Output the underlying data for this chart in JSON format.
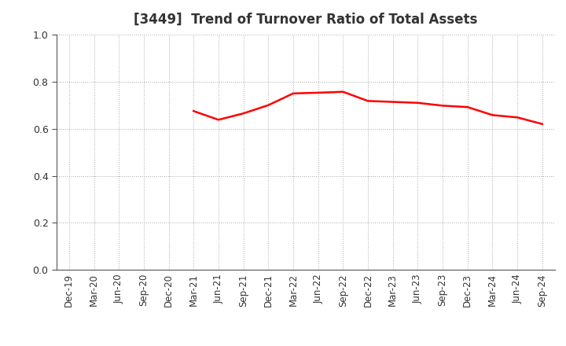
{
  "title": "[3449]  Trend of Turnover Ratio of Total Assets",
  "x_labels": [
    "Dec-19",
    "Mar-20",
    "Jun-20",
    "Sep-20",
    "Dec-20",
    "Mar-21",
    "Jun-21",
    "Sep-21",
    "Dec-21",
    "Mar-22",
    "Jun-22",
    "Sep-22",
    "Dec-22",
    "Mar-23",
    "Jun-23",
    "Sep-23",
    "Dec-23",
    "Mar-24",
    "Jun-24",
    "Sep-24"
  ],
  "y_values": [
    null,
    null,
    null,
    null,
    null,
    0.675,
    0.638,
    0.665,
    0.7,
    0.75,
    0.753,
    0.757,
    0.718,
    0.714,
    0.71,
    0.698,
    0.692,
    0.658,
    0.648,
    0.62
  ],
  "line_color": "#ff0000",
  "line_width": 1.8,
  "ylim": [
    0.0,
    1.0
  ],
  "yticks": [
    0.0,
    0.2,
    0.4,
    0.6,
    0.8,
    1.0
  ],
  "background_color": "#ffffff",
  "grid_color": "#aaaaaa",
  "title_fontsize": 12,
  "title_color": "#333333"
}
